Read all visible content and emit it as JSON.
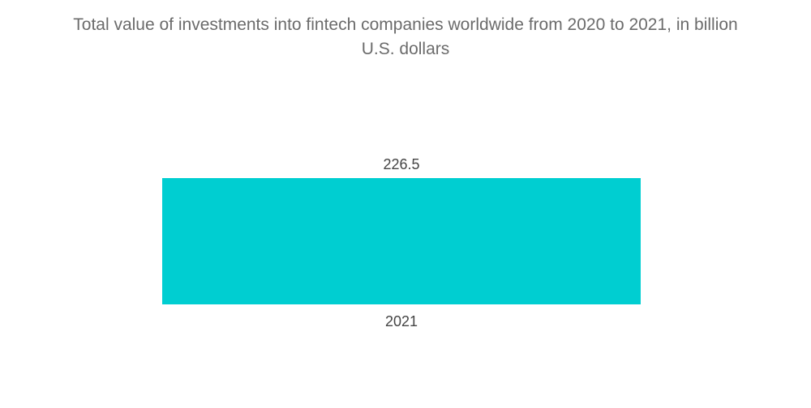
{
  "chart_data": {
    "type": "bar",
    "title_lines": [
      "Total value of investments into fintech companies worldwide from 2020 to 2021, in billion",
      "U.S. dollars"
    ],
    "categories": [
      "2021"
    ],
    "values": [
      226.5
    ],
    "data_labels": [
      "226.5"
    ],
    "xlabel": "",
    "ylabel": "",
    "ylim": [
      0,
      226.5
    ],
    "grid": false,
    "legend": "none",
    "bar_color": "#00ced1"
  }
}
